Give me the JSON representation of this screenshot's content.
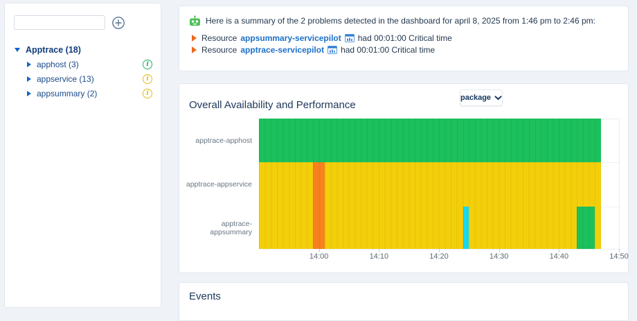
{
  "colors": {
    "page_bg": "#eff2f7",
    "card_border": "#e2e8ef",
    "title_text": "#20395c",
    "body_text": "#24384f",
    "link_blue": "#1c70c8",
    "bullet_orange": "#ec6a1f",
    "tree_root_blue": "#113d7a",
    "tree_item_blue": "#1a4988",
    "caret_blue": "#1464c4",
    "status_icon_ok": "#27ae60",
    "status_icon_warning": "#e2bd1b",
    "axis_text": "#5d6873"
  },
  "sidebar": {
    "search_placeholder": "",
    "search_value": "",
    "tree": {
      "root_label": "Apptrace (18)",
      "children": [
        {
          "label": "apphost (3)",
          "status": "ok"
        },
        {
          "label": "appservice (13)",
          "status": "warning"
        },
        {
          "label": "appsummary (2)",
          "status": "warning"
        }
      ]
    }
  },
  "summary_panel": {
    "intro": "Here is a summary of the 2 problems detected in the dashboard for april 8, 2025 from 1:46 pm to 2:46 pm:",
    "problems": [
      {
        "prefix": "Resource",
        "resource": "appsummary-servicepilot",
        "suffix": "had 00:01:00 Critical time"
      },
      {
        "prefix": "Resource",
        "resource": "apptrace-servicepilot",
        "suffix": "had 00:01:00 Critical time"
      }
    ]
  },
  "availability_panel": {
    "title": "Overall Availability and Performance",
    "selector_value": "package",
    "chart_data": {
      "type": "heatmap",
      "title": "Overall Availability and Performance",
      "rows": [
        "apptrace-apphost",
        "apptrace-appservice",
        "apptrace-appsummary"
      ],
      "x_ticks": [
        "14:00",
        "14:10",
        "14:20",
        "14:30",
        "14:40",
        "14:50"
      ],
      "axis_start": "13:50",
      "axis_end": "14:50",
      "data_start": "13:50",
      "data_end": "14:47",
      "grid": true,
      "statuses": {
        "ok": "#1cc05c",
        "warning": "#f3cf0b",
        "critical": "#f8811f",
        "info": "#18d7f0"
      },
      "segments": [
        {
          "row": "apptrace-apphost",
          "status": "ok",
          "from": "13:50",
          "to": "14:47"
        },
        {
          "row": "apptrace-appservice",
          "status": "warning",
          "from": "13:50",
          "to": "13:59"
        },
        {
          "row": "apptrace-appservice",
          "status": "critical",
          "from": "13:59",
          "to": "14:01"
        },
        {
          "row": "apptrace-appservice",
          "status": "warning",
          "from": "14:01",
          "to": "14:47"
        },
        {
          "row": "apptrace-appsummary",
          "status": "warning",
          "from": "13:50",
          "to": "13:59"
        },
        {
          "row": "apptrace-appsummary",
          "status": "critical",
          "from": "13:59",
          "to": "14:01"
        },
        {
          "row": "apptrace-appsummary",
          "status": "warning",
          "from": "14:01",
          "to": "14:24"
        },
        {
          "row": "apptrace-appsummary",
          "status": "info",
          "from": "14:24",
          "to": "14:25"
        },
        {
          "row": "apptrace-appsummary",
          "status": "warning",
          "from": "14:25",
          "to": "14:43"
        },
        {
          "row": "apptrace-appsummary",
          "status": "ok",
          "from": "14:43",
          "to": "14:46"
        },
        {
          "row": "apptrace-appsummary",
          "status": "warning",
          "from": "14:46",
          "to": "14:47"
        }
      ]
    }
  },
  "events_panel": {
    "title": "Events"
  }
}
